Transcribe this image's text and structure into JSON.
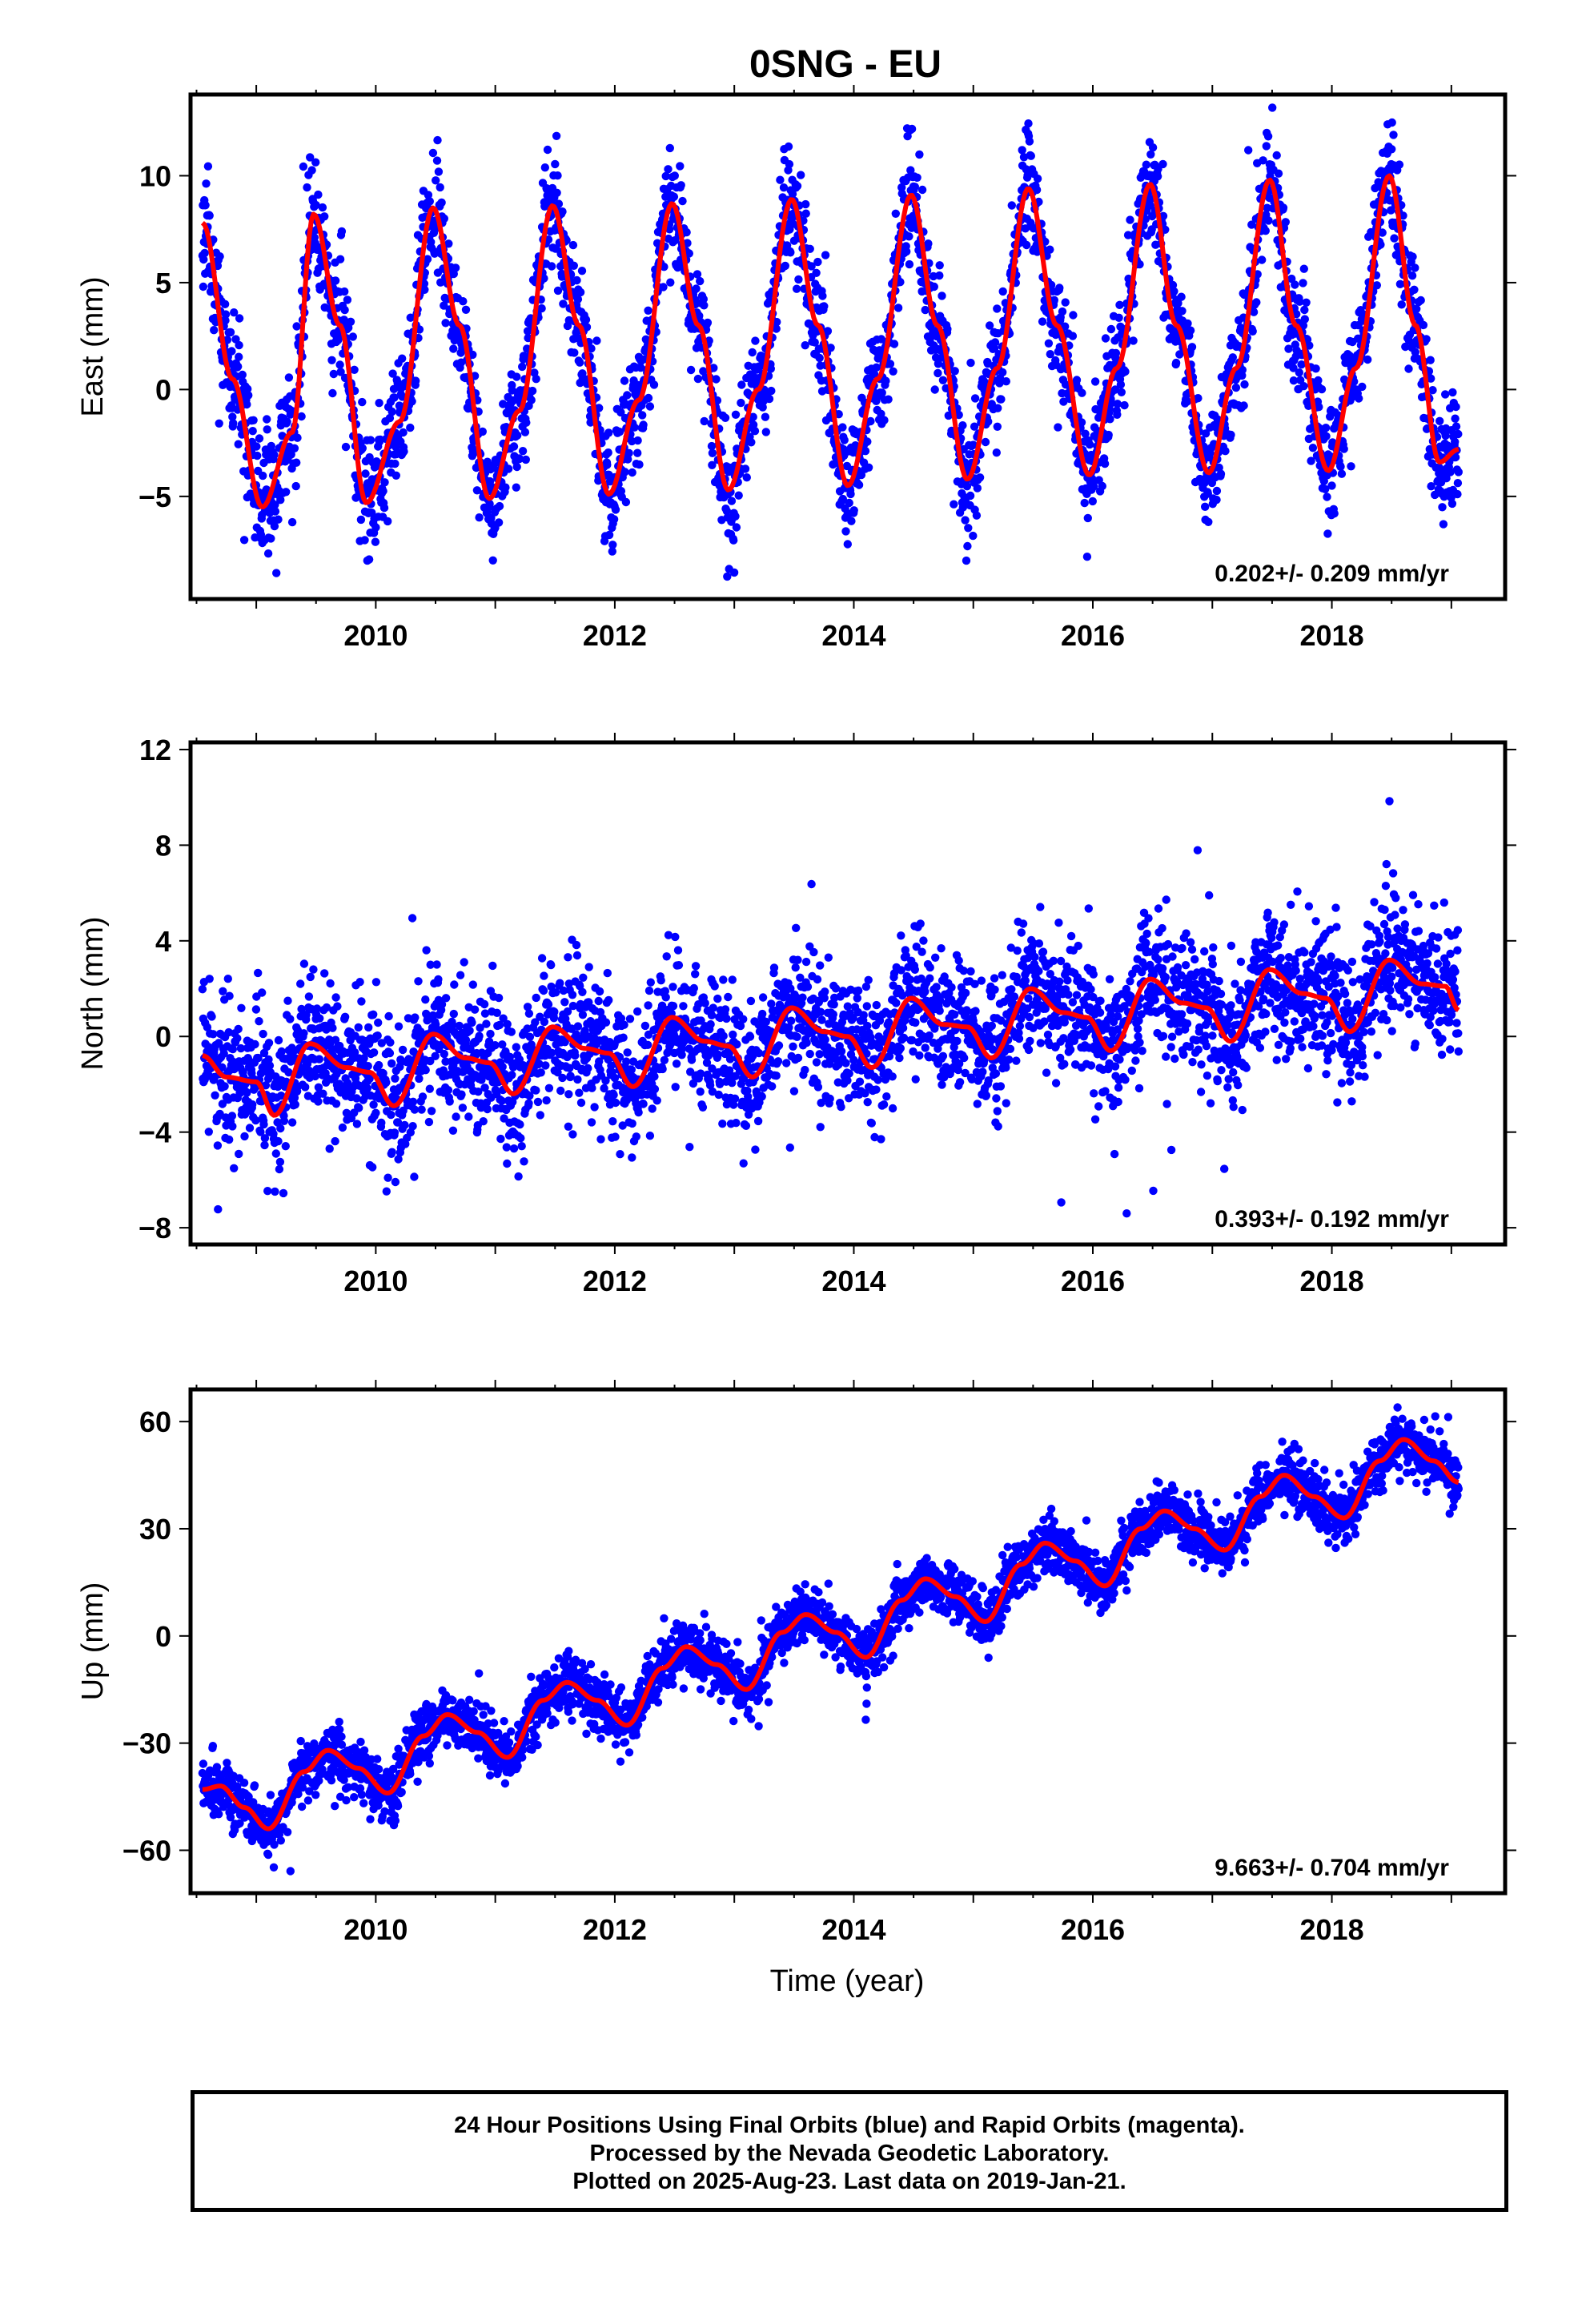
{
  "title": "0SNG - EU",
  "colors": {
    "points": "#0000ff",
    "model": "#ff0000",
    "frame": "#000000"
  },
  "x_axis_label": "Time (year)",
  "x_tick_labels": [
    "2010",
    "2012",
    "2014",
    "2016",
    "2018"
  ],
  "footer": {
    "line1": "24 Hour Positions Using Final Orbits (blue) and Rapid Orbits (magenta).",
    "line2": "Processed by the Nevada Geodetic Laboratory.",
    "line3": "Plotted on 2025-Aug-23. Last data on 2019-Jan-21."
  },
  "chart_data": [
    {
      "type": "scatter",
      "ylabel": "East (mm)",
      "xlim": [
        2008.45,
        2019.45
      ],
      "ylim": [
        -9.8,
        13.8
      ],
      "xticks": [
        2010,
        2012,
        2014,
        2016,
        2018
      ],
      "yticks": [
        -5,
        0,
        5,
        10
      ],
      "rate_label": "0.202+/- 0.209 mm/yr",
      "data_start": 2008.55,
      "data_end": 2019.06,
      "model_x": [
        2008.55,
        2008.8,
        2009.05,
        2009.3,
        2009.48,
        2009.7,
        2009.92,
        2010.2,
        2010.48,
        2010.7,
        2010.95,
        2011.2,
        2011.48,
        2011.7,
        2011.95,
        2012.2,
        2012.48,
        2012.7,
        2012.95,
        2013.2,
        2013.48,
        2013.7,
        2013.95,
        2014.2,
        2014.48,
        2014.7,
        2014.95,
        2015.2,
        2015.46,
        2015.7,
        2015.97,
        2016.2,
        2016.48,
        2016.7,
        2016.97,
        2017.2,
        2017.48,
        2017.7,
        2017.97,
        2018.2,
        2018.48,
        2018.7,
        2018.9,
        2019.06
      ],
      "model_y": [
        7.8,
        0.5,
        -5.5,
        -2.0,
        8.2,
        3.0,
        -5.3,
        -1.5,
        8.5,
        3.0,
        -5.1,
        -1.0,
        8.6,
        3.0,
        -4.9,
        -0.5,
        8.7,
        3.0,
        -4.7,
        0.0,
        8.9,
        3.0,
        -4.5,
        0.5,
        9.1,
        3.0,
        -4.2,
        1.0,
        9.4,
        3.0,
        -4.0,
        1.0,
        9.6,
        3.0,
        -3.9,
        1.0,
        9.8,
        3.0,
        -3.8,
        1.0,
        10.0,
        3.0,
        -3.4,
        -2.8
      ],
      "scatter": {
        "count": 3400,
        "noise_sd": 1.35,
        "trend_per_year": 0.0,
        "seed": 11,
        "outlier_rate": 0.015
      }
    },
    {
      "type": "scatter",
      "ylabel": "North (mm)",
      "xlim": [
        2008.45,
        2019.45
      ],
      "ylim": [
        -8.7,
        12.3
      ],
      "xticks": [
        2010,
        2012,
        2014,
        2016,
        2018
      ],
      "yticks": [
        -8,
        -4,
        0,
        4,
        8,
        12
      ],
      "rate_label": "0.393+/- 0.192 mm/yr",
      "data_start": 2008.55,
      "data_end": 2019.06,
      "model_x": [
        2008.55,
        2008.75,
        2009.0,
        2009.15,
        2009.45,
        2009.75,
        2009.95,
        2010.15,
        2010.48,
        2010.75,
        2010.95,
        2011.15,
        2011.48,
        2011.75,
        2011.95,
        2012.15,
        2012.48,
        2012.75,
        2012.95,
        2013.15,
        2013.48,
        2013.75,
        2013.95,
        2014.15,
        2014.48,
        2014.75,
        2014.95,
        2015.15,
        2015.48,
        2015.75,
        2015.95,
        2016.15,
        2016.48,
        2016.75,
        2016.95,
        2017.15,
        2017.48,
        2017.75,
        2017.95,
        2018.15,
        2018.48,
        2018.75,
        2018.95,
        2019.06
      ],
      "model_y": [
        -0.8,
        -1.7,
        -1.9,
        -3.3,
        -0.3,
        -1.3,
        -1.5,
        -2.9,
        0.1,
        -0.9,
        -1.1,
        -2.4,
        0.4,
        -0.5,
        -0.7,
        -2.1,
        0.8,
        -0.2,
        -0.4,
        -1.7,
        1.2,
        0.2,
        0.0,
        -1.3,
        1.6,
        0.5,
        0.4,
        -0.9,
        2.0,
        1.0,
        0.8,
        -0.6,
        2.4,
        1.4,
        1.2,
        -0.2,
        2.8,
        1.8,
        1.6,
        0.2,
        3.2,
        2.2,
        2.1,
        1.1
      ],
      "scatter": {
        "count": 3400,
        "noise_sd": 1.4,
        "trend_per_year": 0.0,
        "seed": 23,
        "outlier_rate": 0.02
      }
    },
    {
      "type": "scatter",
      "ylabel": "Up (mm)",
      "xlim": [
        2008.45,
        2019.45
      ],
      "ylim": [
        -72,
        69
      ],
      "xticks": [
        2010,
        2012,
        2014,
        2016,
        2018
      ],
      "yticks": [
        -60,
        -30,
        0,
        30,
        60
      ],
      "rate_label": "9.663+/- 0.704 mm/yr",
      "data_start": 2008.55,
      "data_end": 2019.06,
      "model_x": [
        2008.55,
        2008.7,
        2008.9,
        2009.1,
        2009.4,
        2009.6,
        2009.85,
        2010.1,
        2010.4,
        2010.6,
        2010.85,
        2011.1,
        2011.4,
        2011.6,
        2011.85,
        2012.1,
        2012.4,
        2012.6,
        2012.85,
        2013.1,
        2013.4,
        2013.6,
        2013.85,
        2014.1,
        2014.4,
        2014.6,
        2014.85,
        2015.1,
        2015.4,
        2015.6,
        2015.85,
        2016.1,
        2016.4,
        2016.6,
        2016.85,
        2017.1,
        2017.4,
        2017.6,
        2017.85,
        2018.1,
        2018.4,
        2018.6,
        2018.85,
        2019.06
      ],
      "model_y": [
        -43,
        -42,
        -48,
        -54,
        -38,
        -32,
        -37,
        -44,
        -28,
        -22,
        -27,
        -34,
        -18,
        -13,
        -18,
        -25,
        -9,
        -3,
        -8,
        -15,
        1,
        6,
        1,
        -6,
        10,
        16,
        11,
        4,
        20,
        26,
        21,
        14,
        30,
        35,
        30,
        24,
        39,
        45,
        39,
        33,
        49,
        55,
        49,
        43
      ],
      "scatter": {
        "count": 3400,
        "noise_sd": 4.0,
        "trend_per_year": 0.0,
        "seed": 37,
        "outlier_rate": 0.015
      }
    }
  ]
}
